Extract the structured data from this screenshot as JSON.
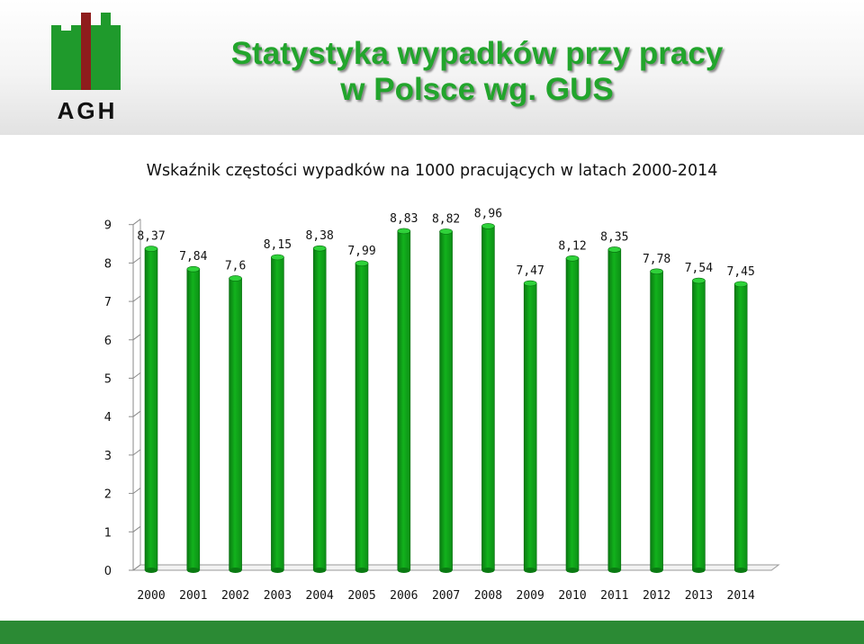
{
  "header": {
    "logo_text": "AGH",
    "title_line1": "Statystyka wypadków przy pracy",
    "title_line2": "w Polsce wg. GUS"
  },
  "colors": {
    "title": "#22a52c",
    "bar": "#12b21c",
    "footer": "#2b8a34"
  },
  "chart_data": {
    "type": "bar",
    "title": "Wskaźnik częstości wypadków na 1000 pracujących w latach  2000-2014",
    "categories": [
      "2000",
      "2001",
      "2002",
      "2003",
      "2004",
      "2005",
      "2006",
      "2007",
      "2008",
      "2009",
      "2010",
      "2011",
      "2012",
      "2013",
      "2014"
    ],
    "values": [
      8.37,
      7.84,
      7.6,
      8.15,
      8.38,
      7.99,
      8.83,
      8.82,
      8.96,
      7.47,
      8.12,
      8.35,
      7.78,
      7.54,
      7.45
    ],
    "value_labels": [
      "8,37",
      "7,84",
      "7,6",
      "8,15",
      "8,38",
      "7,99",
      "8,83",
      "8,82",
      "8,96",
      "7,47",
      "8,12",
      "8,35",
      "7,78",
      "7,54",
      "7,45"
    ],
    "y_ticks": [
      "0",
      "1",
      "2",
      "3",
      "4",
      "5",
      "6",
      "7",
      "8",
      "9"
    ],
    "ylim": [
      0,
      9
    ],
    "xlabel": "",
    "ylabel": "",
    "grid": false,
    "legend": "none"
  }
}
